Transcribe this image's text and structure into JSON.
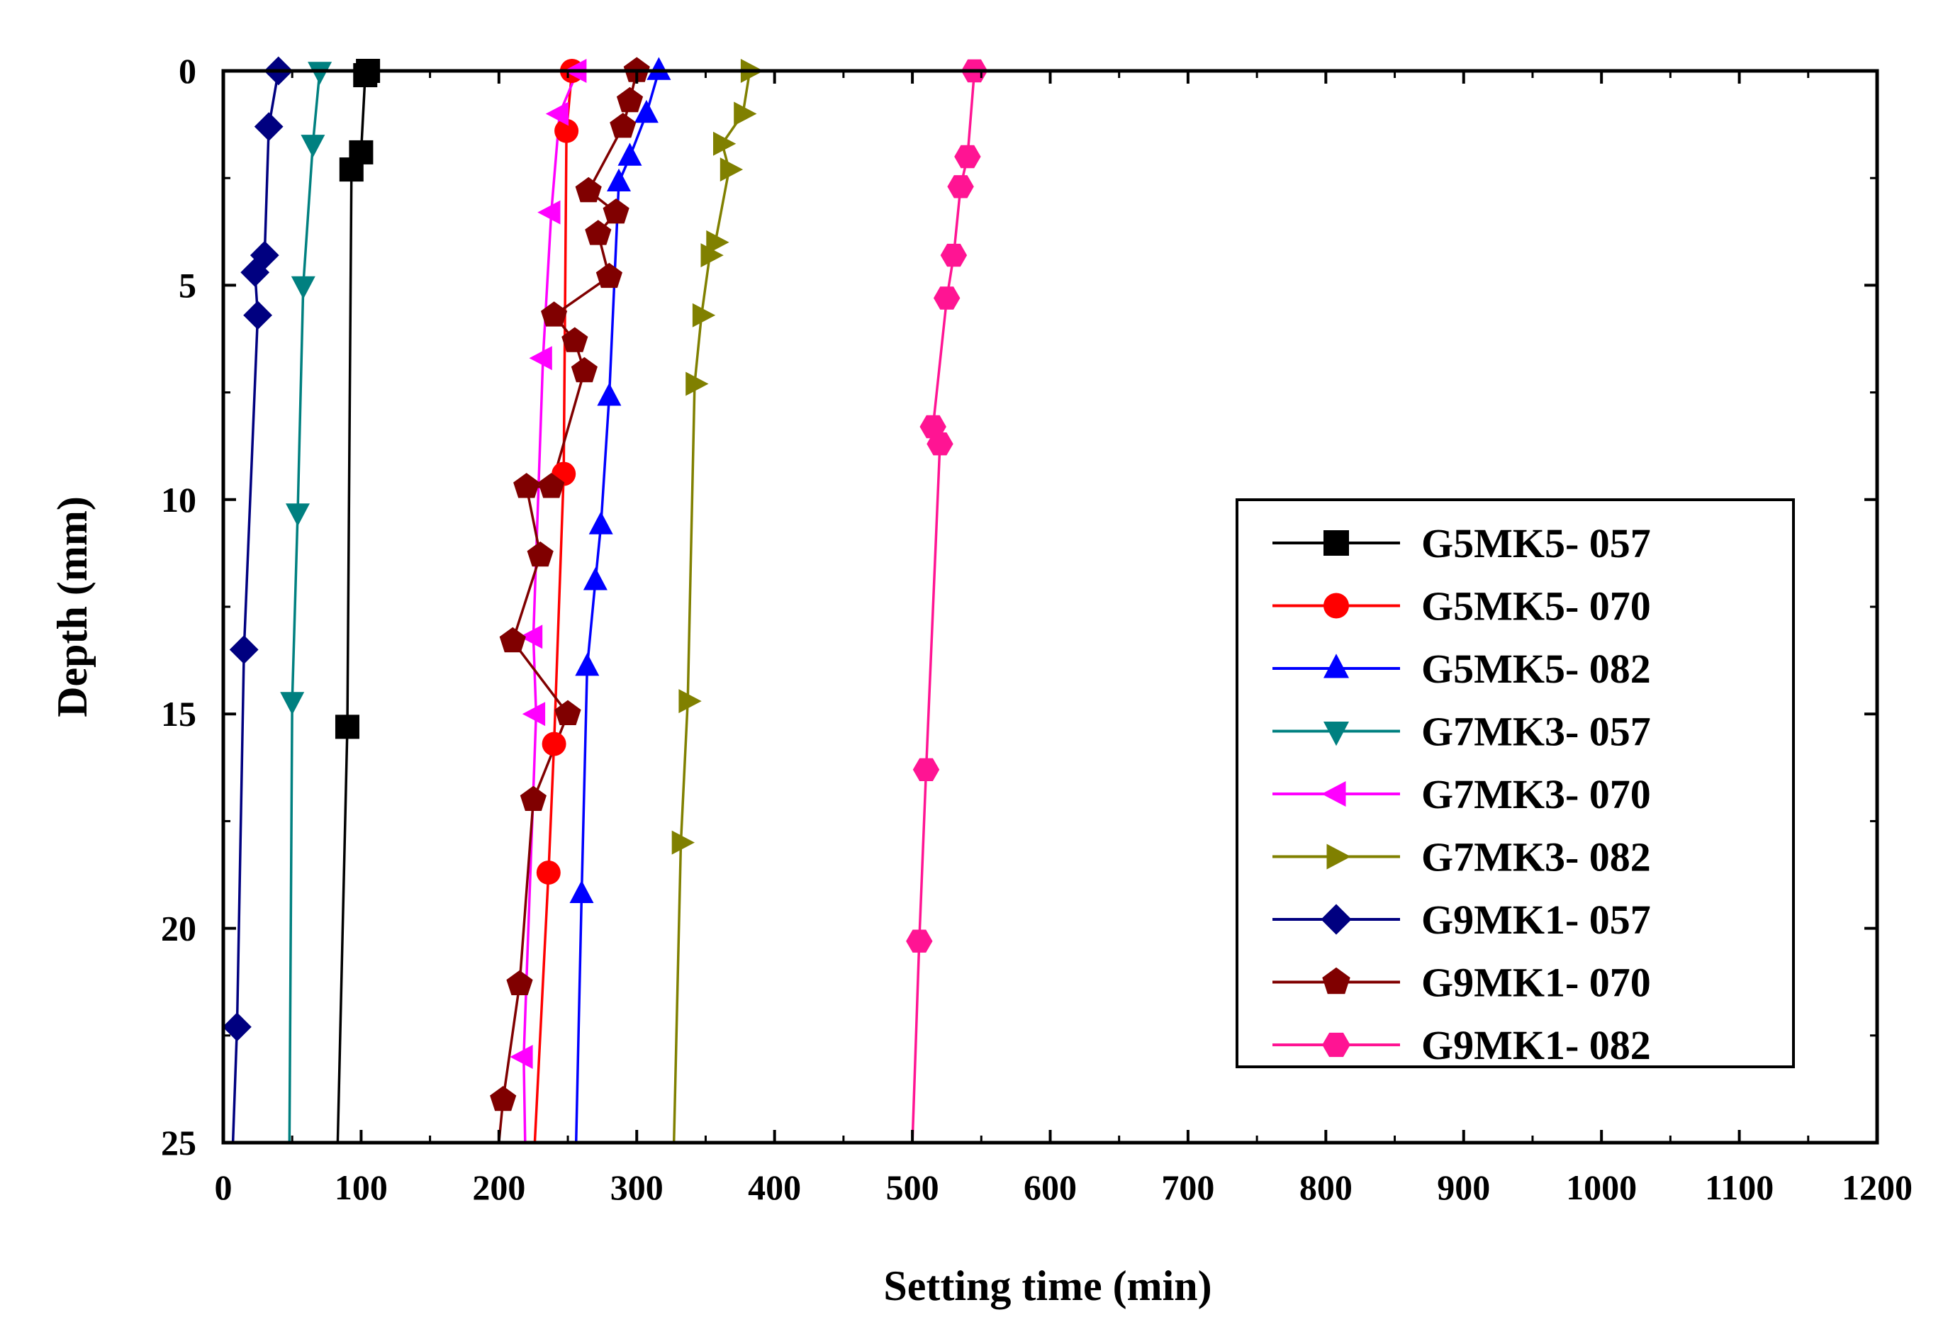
{
  "chart_data": {
    "type": "line",
    "title": "",
    "xlabel": "Setting time (min)",
    "ylabel": "Depth (mm)",
    "xlim": [
      0,
      1200
    ],
    "ylim": [
      0,
      25
    ],
    "y_inverted": true,
    "x_ticks": [
      "0",
      "100",
      "200",
      "300",
      "400",
      "500",
      "600",
      "700",
      "800",
      "900",
      "1000",
      "1100",
      "1200"
    ],
    "y_ticks": [
      "0",
      "5",
      "10",
      "15",
      "20",
      "25"
    ],
    "grid": false,
    "legend_position": "center-right",
    "series": [
      {
        "name": "G5MK5- 057",
        "color": "#000000",
        "marker": "square",
        "points": [
          [
            105,
            0
          ],
          [
            103,
            0.1
          ],
          [
            100,
            1.9
          ],
          [
            93,
            2.3
          ],
          [
            90,
            15.3
          ],
          [
            83,
            25
          ]
        ]
      },
      {
        "name": "G5MK5- 070",
        "color": "#ff0000",
        "marker": "circle",
        "points": [
          [
            253,
            0
          ],
          [
            249,
            1.4
          ],
          [
            247,
            9.4
          ],
          [
            240,
            15.7
          ],
          [
            236,
            18.7
          ],
          [
            226,
            25
          ]
        ]
      },
      {
        "name": "G5MK5- 082",
        "color": "#0000ff",
        "marker": "triangle-up",
        "points": [
          [
            316,
            0
          ],
          [
            307,
            1
          ],
          [
            295,
            2
          ],
          [
            287,
            2.6
          ],
          [
            280,
            7.6
          ],
          [
            274,
            10.6
          ],
          [
            270,
            11.9
          ],
          [
            264,
            13.9
          ],
          [
            260,
            19.2
          ],
          [
            256,
            25
          ]
        ]
      },
      {
        "name": "G7MK3- 057",
        "color": "#008080",
        "marker": "triangle-down",
        "points": [
          [
            70,
            0
          ],
          [
            65,
            1.7
          ],
          [
            58,
            5
          ],
          [
            54,
            10.3
          ],
          [
            50,
            14.7
          ],
          [
            48,
            25
          ]
        ]
      },
      {
        "name": "G7MK3- 070",
        "color": "#ff00ff",
        "marker": "triangle-left",
        "points": [
          [
            257,
            0
          ],
          [
            244,
            1
          ],
          [
            238,
            3.3
          ],
          [
            232,
            6.7
          ],
          [
            225,
            13.2
          ],
          [
            227,
            15
          ],
          [
            218,
            23
          ],
          [
            219,
            25
          ]
        ]
      },
      {
        "name": "G7MK3- 082",
        "color": "#808000",
        "marker": "triangle-right",
        "points": [
          [
            382,
            0
          ],
          [
            377,
            1
          ],
          [
            362,
            1.7
          ],
          [
            367,
            2.3
          ],
          [
            357,
            4
          ],
          [
            353,
            4.3
          ],
          [
            347,
            5.7
          ],
          [
            342,
            7.3
          ],
          [
            337,
            14.7
          ],
          [
            332,
            18
          ],
          [
            327,
            25
          ]
        ]
      },
      {
        "name": "G9MK1- 057",
        "color": "#000080",
        "marker": "diamond",
        "points": [
          [
            40,
            0
          ],
          [
            33,
            1.3
          ],
          [
            30,
            4.3
          ],
          [
            23,
            4.7
          ],
          [
            25,
            5.7
          ],
          [
            15,
            13.5
          ],
          [
            10,
            22.3
          ],
          [
            7,
            25
          ]
        ]
      },
      {
        "name": "G9MK1- 070",
        "color": "#800000",
        "marker": "pentagon",
        "points": [
          [
            300,
            0
          ],
          [
            295,
            0.7
          ],
          [
            290,
            1.3
          ],
          [
            265,
            2.8
          ],
          [
            285,
            3.3
          ],
          [
            272,
            3.8
          ],
          [
            280,
            4.8
          ],
          [
            240,
            5.7
          ],
          [
            255,
            6.3
          ],
          [
            262,
            7
          ],
          [
            238,
            9.7
          ],
          [
            220,
            9.7
          ],
          [
            230,
            11.3
          ],
          [
            210,
            13.3
          ],
          [
            250,
            15
          ],
          [
            225,
            17
          ],
          [
            215,
            21.3
          ],
          [
            203,
            24
          ],
          [
            200,
            25
          ]
        ]
      },
      {
        "name": "G9MK1- 082",
        "color": "#ff1493",
        "marker": "hexagon",
        "points": [
          [
            545,
            0
          ],
          [
            540,
            2
          ],
          [
            535,
            2.7
          ],
          [
            530,
            4.3
          ],
          [
            525,
            5.3
          ],
          [
            515,
            8.3
          ],
          [
            520,
            8.7
          ],
          [
            510,
            16.3
          ],
          [
            505,
            20.3
          ],
          [
            500,
            25
          ]
        ]
      }
    ]
  }
}
